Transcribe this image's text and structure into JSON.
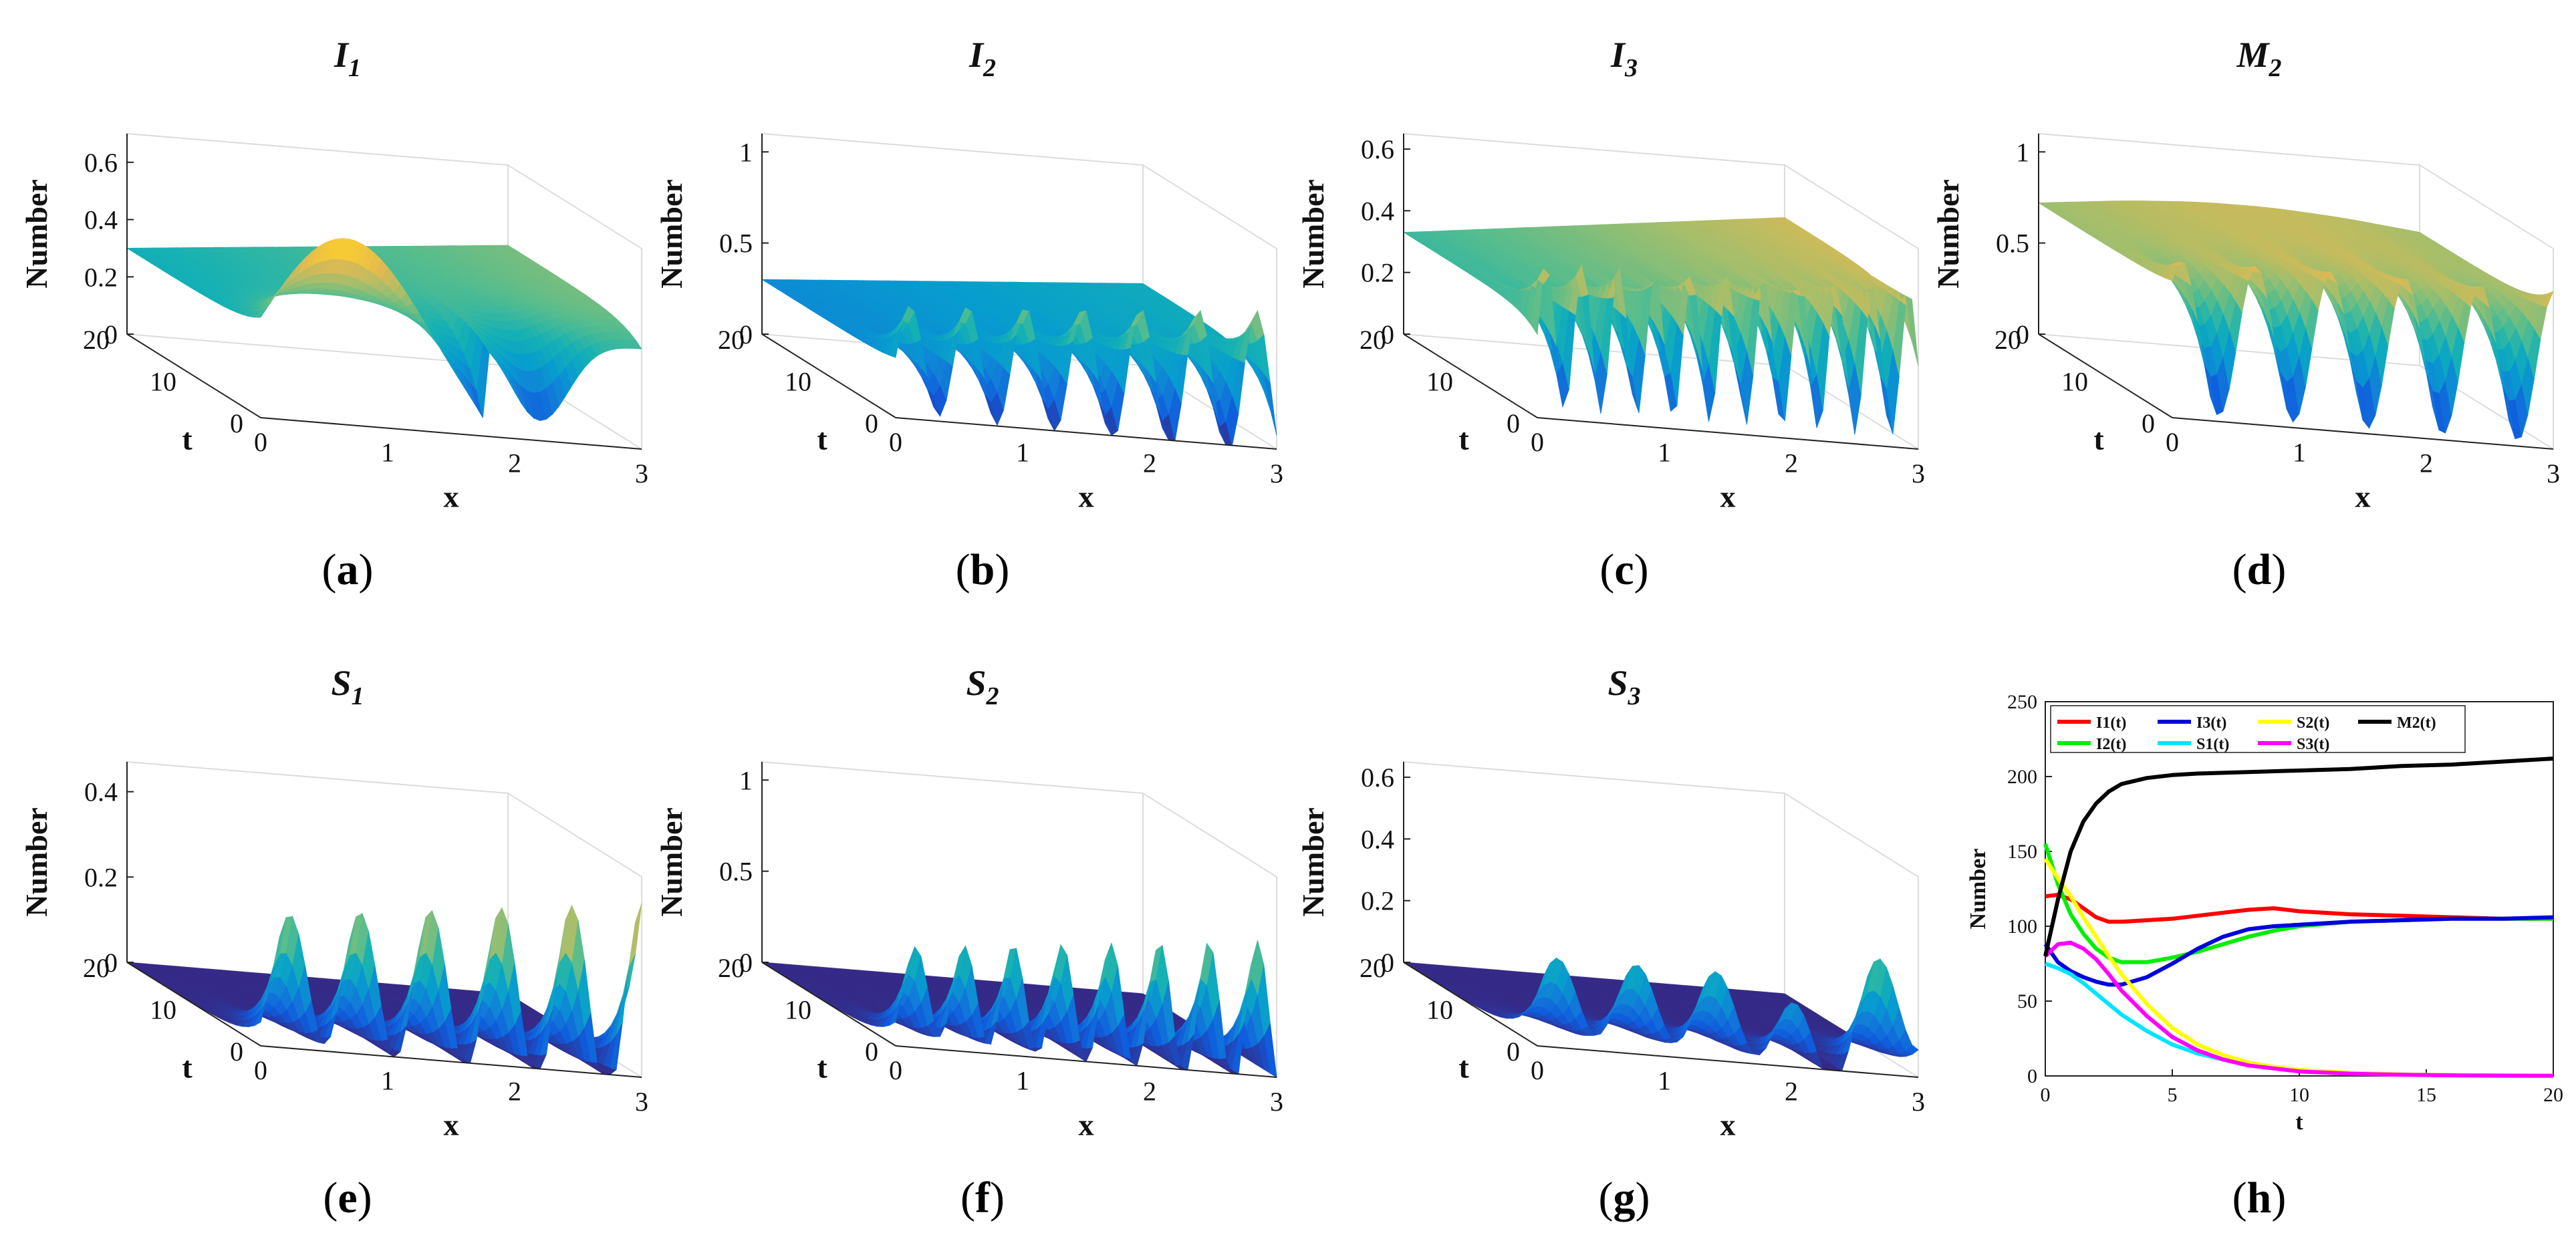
{
  "figure": {
    "surface_panels": [
      {
        "id": "a",
        "title": "I",
        "sub": "1",
        "caption": "a",
        "zlabel": "Number",
        "xlabel": "x",
        "tlabel": "t",
        "zticks": [
          "0",
          "0.2",
          "0.4",
          "0.6"
        ],
        "zmax": 0.7,
        "xticks": [
          "0",
          "1",
          "2",
          "3"
        ],
        "tticks": [
          "0",
          "10",
          "20"
        ],
        "shape": "i1"
      },
      {
        "id": "b",
        "title": "I",
        "sub": "2",
        "caption": "b",
        "zlabel": "Number",
        "xlabel": "x",
        "tlabel": "t",
        "zticks": [
          "0",
          "0.5",
          "1"
        ],
        "zmax": 1.1,
        "xticks": [
          "0",
          "1",
          "2",
          "3"
        ],
        "tticks": [
          "0",
          "10",
          "20"
        ],
        "shape": "i2"
      },
      {
        "id": "c",
        "title": "I",
        "sub": "3",
        "caption": "c",
        "zlabel": "Number",
        "xlabel": "x",
        "tlabel": "t",
        "zticks": [
          "0",
          "0.2",
          "0.4",
          "0.6"
        ],
        "zmax": 0.65,
        "xticks": [
          "0",
          "1",
          "2",
          "3"
        ],
        "tticks": [
          "0",
          "10",
          "20"
        ],
        "shape": "i3"
      },
      {
        "id": "d",
        "title": "M",
        "sub": "2",
        "caption": "d",
        "zlabel": "Number",
        "xlabel": "x",
        "tlabel": "t",
        "zticks": [
          "0",
          "0.5",
          "1"
        ],
        "zmax": 1.1,
        "xticks": [
          "0",
          "1",
          "2",
          "3"
        ],
        "tticks": [
          "0",
          "10",
          "20"
        ],
        "shape": "m2"
      },
      {
        "id": "e",
        "title": "S",
        "sub": "1",
        "caption": "e",
        "zlabel": "Number",
        "xlabel": "x",
        "tlabel": "t",
        "zticks": [
          "0",
          "0.2",
          "0.4"
        ],
        "zmax": 0.47,
        "xticks": [
          "0",
          "1",
          "2",
          "3"
        ],
        "tticks": [
          "0",
          "10",
          "20"
        ],
        "shape": "s1"
      },
      {
        "id": "f",
        "title": "S",
        "sub": "2",
        "caption": "f",
        "zlabel": "Number",
        "xlabel": "x",
        "tlabel": "t",
        "zticks": [
          "0",
          "0.5",
          "1"
        ],
        "zmax": 1.1,
        "xticks": [
          "0",
          "1",
          "2",
          "3"
        ],
        "tticks": [
          "0",
          "10",
          "20"
        ],
        "shape": "s2"
      },
      {
        "id": "g",
        "title": "S",
        "sub": "3",
        "caption": "g",
        "zlabel": "Number",
        "xlabel": "x",
        "tlabel": "t",
        "zticks": [
          "0",
          "0.2",
          "0.4",
          "0.6"
        ],
        "zmax": 0.65,
        "xticks": [
          "0",
          "1",
          "2",
          "3"
        ],
        "tticks": [
          "0",
          "10",
          "20"
        ],
        "shape": "s3"
      }
    ],
    "line_panel_caption": "h"
  },
  "chart_data": {
    "type": "line",
    "panel": "h",
    "xlabel": "t",
    "ylabel": "Number",
    "xlim": [
      0,
      20
    ],
    "ylim": [
      0,
      250
    ],
    "xticks": [
      "0",
      "5",
      "10",
      "15",
      "20"
    ],
    "yticks": [
      "0",
      "50",
      "100",
      "150",
      "200",
      "250"
    ],
    "legend_position": "top",
    "series": [
      {
        "name": "I1(t)",
        "color": "#ff0000",
        "x": [
          0,
          0.5,
          1,
          1.5,
          2,
          2.5,
          3,
          4,
          5,
          6,
          7,
          8,
          9,
          10,
          12,
          14,
          16,
          18,
          20
        ],
        "y": [
          120,
          121,
          118,
          112,
          106,
          103,
          103,
          104,
          105,
          107,
          109,
          111,
          112,
          110,
          108,
          107,
          106,
          105,
          105
        ]
      },
      {
        "name": "I2(t)",
        "color": "#00ee00",
        "x": [
          0,
          0.5,
          1,
          1.5,
          2,
          2.5,
          3,
          4,
          5,
          6,
          7,
          8,
          9,
          10,
          12,
          14,
          16,
          18,
          20
        ],
        "y": [
          155,
          128,
          108,
          95,
          85,
          79,
          76,
          76,
          79,
          83,
          88,
          93,
          97,
          100,
          103,
          104,
          105,
          105,
          105
        ]
      },
      {
        "name": "I3(t)",
        "color": "#0000dd",
        "x": [
          0,
          0.5,
          1,
          1.5,
          2,
          2.5,
          3,
          4,
          5,
          6,
          7,
          8,
          9,
          10,
          12,
          14,
          16,
          18,
          20
        ],
        "y": [
          88,
          76,
          70,
          66,
          63,
          61,
          61,
          66,
          75,
          85,
          93,
          98,
          100,
          101,
          103,
          104,
          105,
          105,
          106
        ]
      },
      {
        "name": "S1(t)",
        "color": "#00e5ff",
        "x": [
          0,
          0.5,
          1,
          1.5,
          2,
          2.5,
          3,
          4,
          5,
          6,
          7,
          8,
          9,
          10,
          12,
          14,
          16,
          18,
          20
        ],
        "y": [
          75,
          72,
          68,
          62,
          55,
          48,
          41,
          30,
          21,
          15,
          11,
          8,
          6,
          4,
          2,
          1,
          0.5,
          0.3,
          0.2
        ]
      },
      {
        "name": "S2(t)",
        "color": "#ffff00",
        "x": [
          0,
          0.5,
          1,
          1.5,
          2,
          2.5,
          3,
          4,
          5,
          6,
          7,
          8,
          9,
          10,
          12,
          14,
          16,
          18,
          20
        ],
        "y": [
          145,
          132,
          120,
          106,
          93,
          80,
          68,
          48,
          32,
          21,
          14,
          9,
          6,
          4,
          2,
          1,
          0.5,
          0.3,
          0.2
        ]
      },
      {
        "name": "S3(t)",
        "color": "#ff00ff",
        "x": [
          0,
          0.5,
          1,
          1.5,
          2,
          2.5,
          3,
          4,
          5,
          6,
          7,
          8,
          9,
          10,
          12,
          14,
          16,
          18,
          20
        ],
        "y": [
          80,
          88,
          89,
          85,
          78,
          68,
          57,
          40,
          26,
          17,
          11,
          7,
          5,
          3,
          1.5,
          0.8,
          0.4,
          0.2,
          0.1
        ]
      },
      {
        "name": "M2(t)",
        "color": "#000000",
        "x": [
          0,
          0.5,
          1,
          1.5,
          2,
          2.5,
          3,
          4,
          5,
          6,
          8,
          10,
          12,
          14,
          16,
          18,
          20
        ],
        "y": [
          80,
          118,
          150,
          170,
          182,
          190,
          195,
          199,
          201,
          202,
          203,
          204,
          205,
          207,
          208,
          210,
          212
        ]
      }
    ]
  }
}
